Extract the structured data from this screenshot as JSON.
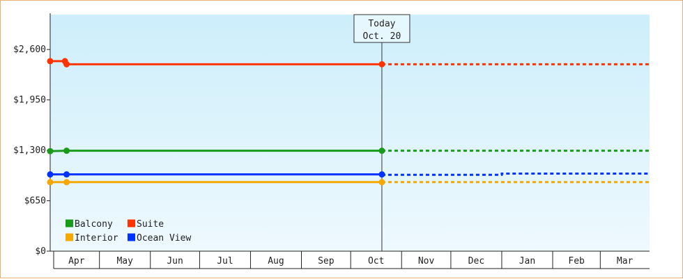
{
  "chart_data": {
    "type": "line",
    "title": "",
    "xlabel": "",
    "ylabel": "",
    "ylim": [
      0,
      3050
    ],
    "yticks": [
      {
        "value": 0,
        "label": "$0"
      },
      {
        "value": 650,
        "label": "$650"
      },
      {
        "value": 1300,
        "label": "$1,300"
      },
      {
        "value": 1950,
        "label": "$1,950"
      },
      {
        "value": 2600,
        "label": "$2,600"
      }
    ],
    "xlim": [
      "2023-04-01",
      "2024-03-31"
    ],
    "months": [
      {
        "label": "Apr",
        "start": "2023-04-01",
        "end": "2023-05-01"
      },
      {
        "label": "May",
        "start": "2023-05-01",
        "end": "2023-06-01"
      },
      {
        "label": "Jun",
        "start": "2023-06-01",
        "end": "2023-07-01"
      },
      {
        "label": "Jul",
        "start": "2023-07-01",
        "end": "2023-08-01"
      },
      {
        "label": "Aug",
        "start": "2023-08-01",
        "end": "2023-09-01"
      },
      {
        "label": "Sep",
        "start": "2023-09-01",
        "end": "2023-10-01"
      },
      {
        "label": "Oct",
        "start": "2023-10-01",
        "end": "2023-11-01"
      },
      {
        "label": "Nov",
        "start": "2023-11-01",
        "end": "2023-12-01"
      },
      {
        "label": "Dec",
        "start": "2023-12-01",
        "end": "2024-01-01"
      },
      {
        "label": "Jan",
        "start": "2024-01-01",
        "end": "2024-02-01"
      },
      {
        "label": "Feb",
        "start": "2024-02-01",
        "end": "2024-03-01"
      },
      {
        "label": "Mar",
        "start": "2024-03-01",
        "end": "2024-04-01"
      }
    ],
    "today": {
      "label": "Today",
      "date_label": "Oct. 20",
      "date": "2023-10-20"
    },
    "series": [
      {
        "name": "Balcony",
        "color": "#1a9a1a",
        "points": [
          {
            "x": "2023-04-01",
            "y": 1290
          },
          {
            "x": "2023-04-11",
            "y": 1295
          },
          {
            "x": "2023-10-20",
            "y": 1295
          }
        ],
        "projection": [
          {
            "x": "2023-10-20",
            "y": 1295
          },
          {
            "x": "2024-03-31",
            "y": 1295
          }
        ]
      },
      {
        "name": "Suite",
        "color": "#ff3300",
        "points": [
          {
            "x": "2023-04-01",
            "y": 2450
          },
          {
            "x": "2023-04-10",
            "y": 2450
          },
          {
            "x": "2023-04-11",
            "y": 2410
          },
          {
            "x": "2023-10-20",
            "y": 2410
          }
        ],
        "projection": [
          {
            "x": "2023-10-20",
            "y": 2410
          },
          {
            "x": "2024-03-31",
            "y": 2410
          }
        ]
      },
      {
        "name": "Interior",
        "color": "#f5a800",
        "points": [
          {
            "x": "2023-04-01",
            "y": 890
          },
          {
            "x": "2023-04-11",
            "y": 890
          },
          {
            "x": "2023-10-20",
            "y": 890
          }
        ],
        "projection": [
          {
            "x": "2023-10-20",
            "y": 890
          },
          {
            "x": "2024-03-31",
            "y": 890
          }
        ]
      },
      {
        "name": "Ocean View",
        "color": "#0033ff",
        "points": [
          {
            "x": "2023-04-01",
            "y": 990
          },
          {
            "x": "2023-04-11",
            "y": 990
          },
          {
            "x": "2023-10-20",
            "y": 990
          }
        ],
        "projection": [
          {
            "x": "2023-10-20",
            "y": 985
          },
          {
            "x": "2024-01-01",
            "y": 985
          },
          {
            "x": "2024-01-01",
            "y": 1000
          },
          {
            "x": "2024-03-31",
            "y": 1000
          }
        ]
      }
    ],
    "legend": {
      "placement": "bottom-left",
      "order": [
        "Balcony",
        "Suite",
        "Interior",
        "Ocean View"
      ]
    },
    "background_gradient": [
      "#cdeefb",
      "#eef9fe"
    ],
    "grid": false
  }
}
